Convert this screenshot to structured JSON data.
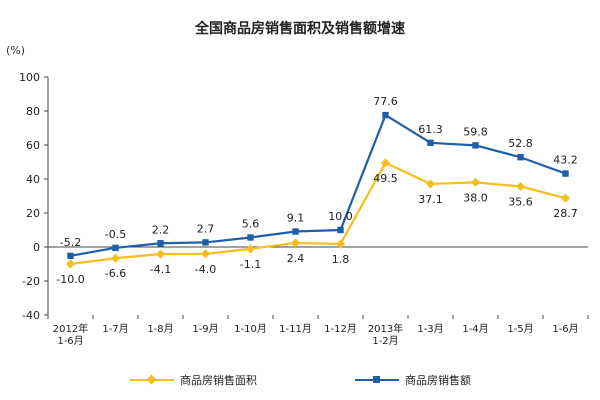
{
  "chart_data": {
    "type": "line",
    "title": "全国商品房销售面积及销售额增速",
    "ylabel": "(%)",
    "xlabel": "",
    "ylim": [
      -40,
      100
    ],
    "yticks": [
      -40,
      -20,
      0,
      20,
      40,
      60,
      80,
      100
    ],
    "categories": [
      [
        "2012年",
        "1-6月"
      ],
      [
        "1-7月"
      ],
      [
        "1-8月"
      ],
      [
        "1-9月"
      ],
      [
        "1-10月"
      ],
      [
        "1-11月"
      ],
      [
        "1-12月"
      ],
      [
        "2013年",
        "1-2月"
      ],
      [
        "1-3月"
      ],
      [
        "1-4月"
      ],
      [
        "1-5月"
      ],
      [
        "1-6月"
      ]
    ],
    "series": [
      {
        "name": "商品房销售面积",
        "color": "#f5be1e",
        "values": [
          -10.0,
          -6.6,
          -4.1,
          -4.0,
          -1.1,
          2.4,
          1.8,
          49.5,
          37.1,
          38.0,
          35.6,
          28.7
        ],
        "labels": [
          "-10.0",
          "-6.6",
          "-4.1",
          "-4.0",
          "-1.1",
          "2.4",
          "1.8",
          "49.5",
          "37.1",
          "38.0",
          "35.6",
          "28.7"
        ]
      },
      {
        "name": "商品房销售额",
        "color": "#1f5fa8",
        "values": [
          -5.2,
          -0.5,
          2.2,
          2.7,
          5.6,
          9.1,
          10.0,
          77.6,
          61.3,
          59.8,
          52.8,
          43.2
        ],
        "labels": [
          "-5.2",
          "-0.5",
          "2.2",
          "2.7",
          "5.6",
          "9.1",
          "10.0",
          "77.6",
          "61.3",
          "59.8",
          "52.8",
          "43.2"
        ]
      }
    ],
    "grid": false,
    "legend": "bottom"
  }
}
